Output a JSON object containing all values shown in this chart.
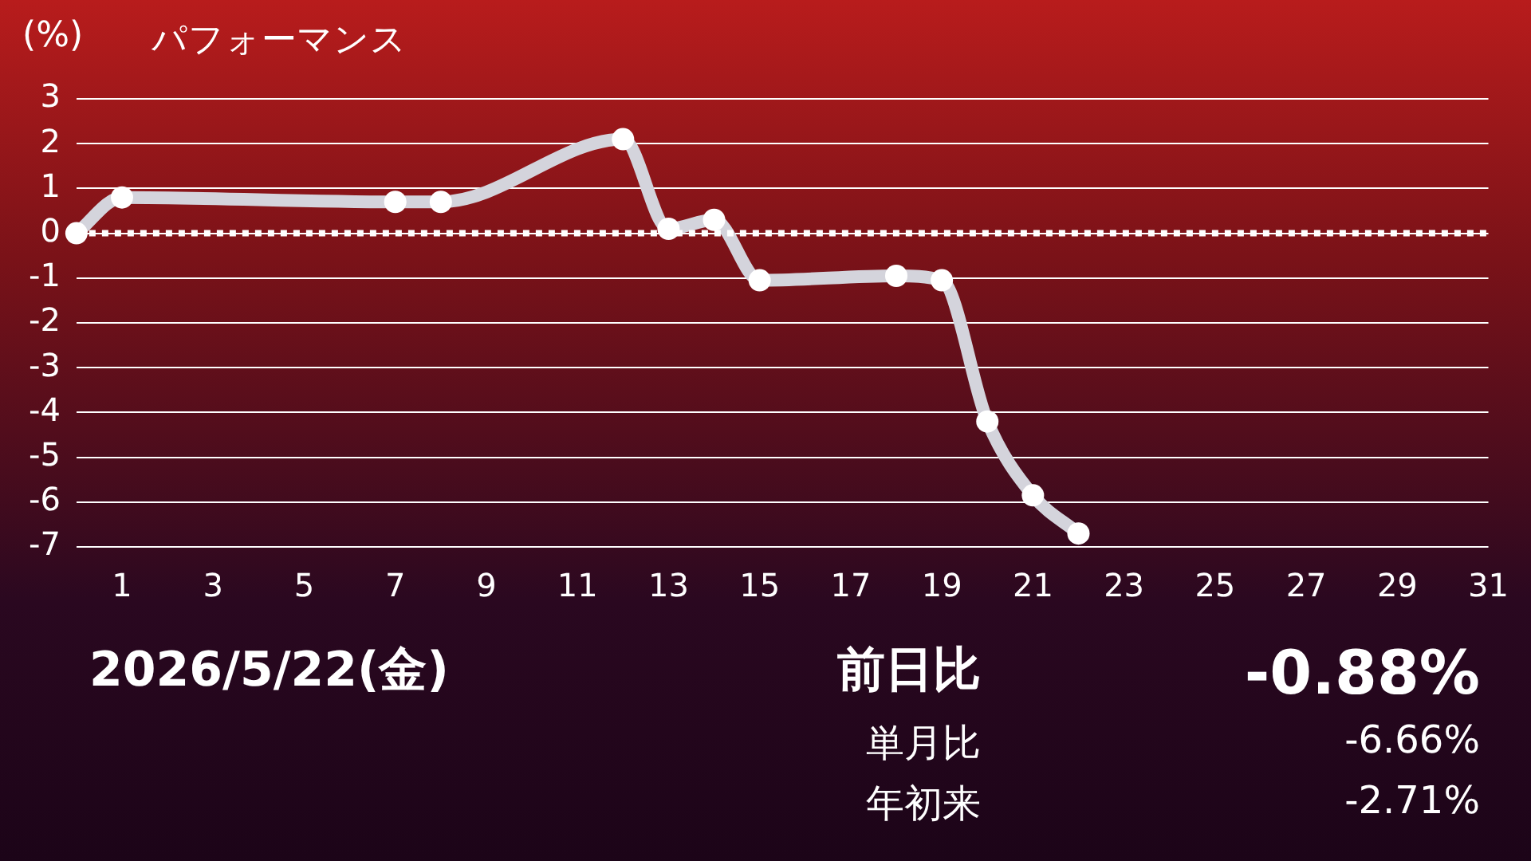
{
  "chart_data": {
    "type": "line",
    "title": "パフォーマンス",
    "ylabel": "(%)",
    "x": [
      0,
      1,
      7,
      8,
      12,
      13,
      14,
      15,
      18,
      19,
      20,
      21,
      22
    ],
    "series": [
      {
        "color": "#d4d4dc",
        "values": [
          0,
          0.8,
          0.7,
          0.7,
          2.1,
          0.1,
          0.3,
          -1.05,
          -0.95,
          -1.05,
          -4.2,
          -5.85,
          -6.7
        ]
      }
    ],
    "xlim": [
      0,
      31
    ],
    "xticks": [
      1,
      3,
      5,
      7,
      9,
      11,
      13,
      15,
      17,
      19,
      21,
      23,
      25,
      27,
      29,
      31
    ],
    "ylim": [
      -7,
      3
    ],
    "yticks": [
      -7,
      -6,
      -5,
      -4,
      -3,
      -2,
      -1,
      0,
      1,
      2,
      3
    ],
    "grid": "y",
    "legend": false,
    "marker": "circle",
    "ref_lines": [
      {
        "axis": "y",
        "value": 0,
        "color": "#ffffff",
        "line_style": "dotted"
      }
    ],
    "annotations": [
      "2026/5/22(金)",
      "前日比",
      "-0.88%",
      "単月比",
      "-6.66%",
      "年初来",
      "-2.71%"
    ]
  }
}
